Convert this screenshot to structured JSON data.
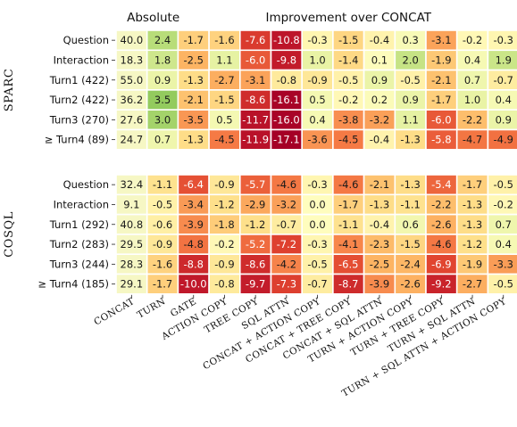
{
  "chart_data": {
    "type": "heatmap",
    "header_absolute": "Absolute",
    "header_improvement": "Improvement over CONCAT",
    "columns": [
      "CONCAT",
      "TURN",
      "GATE",
      "ACTION COPY",
      "TREE COPY",
      "SQL ATTN",
      "CONCAT + ACTION COPY",
      "CONCAT + TREE COPY",
      "CONCAT + SQL ATTN",
      "TURN + ACTION COPY",
      "TURN + TREE COPY",
      "TURN + SQL ATTN",
      "TURN + SQL ATTN + ACTION COPY"
    ],
    "groups": [
      {
        "name": "SPARC",
        "rows": [
          {
            "label": "Question",
            "values": [
              40.0,
              2.4,
              -1.7,
              -1.6,
              -7.6,
              -10.8,
              -0.3,
              -1.5,
              -0.4,
              0.3,
              -3.1,
              -0.2,
              -0.3
            ]
          },
          {
            "label": "Interaction",
            "values": [
              18.3,
              1.8,
              -2.5,
              1.1,
              -6.0,
              -9.8,
              1.0,
              -1.4,
              0.1,
              2.0,
              -1.9,
              0.4,
              1.9
            ]
          },
          {
            "label": "Turn1 (422)",
            "values": [
              55.0,
              0.9,
              -1.3,
              -2.7,
              -3.1,
              -0.8,
              -0.9,
              -0.5,
              0.9,
              -0.5,
              -2.1,
              0.7,
              -0.7
            ]
          },
          {
            "label": "Turn2 (422)",
            "values": [
              36.2,
              3.5,
              -2.1,
              -1.5,
              -8.6,
              -16.1,
              0.5,
              -0.2,
              0.2,
              0.9,
              -1.7,
              1.0,
              0.4
            ]
          },
          {
            "label": "Turn3 (270)",
            "values": [
              27.6,
              3.0,
              -3.5,
              0.5,
              -11.7,
              -16.0,
              0.4,
              -3.8,
              -3.2,
              1.1,
              -6.0,
              -2.2,
              0.9
            ]
          },
          {
            "label": "≥ Turn4 (89)",
            "values": [
              24.7,
              0.7,
              -1.3,
              -4.5,
              -11.9,
              -17.1,
              -3.6,
              -4.5,
              -0.4,
              -1.3,
              -5.8,
              -4.7,
              -4.9
            ]
          }
        ]
      },
      {
        "name": "COSQL",
        "rows": [
          {
            "label": "Question",
            "values": [
              32.4,
              -1.1,
              -6.4,
              -0.9,
              -5.7,
              -4.6,
              -0.3,
              -4.6,
              -2.1,
              -1.3,
              -5.4,
              -1.7,
              -0.5
            ]
          },
          {
            "label": "Interaction",
            "values": [
              9.1,
              -0.5,
              -3.4,
              -1.2,
              -2.9,
              -3.2,
              0.0,
              -1.7,
              -1.3,
              -1.1,
              -2.2,
              -1.3,
              -0.2
            ]
          },
          {
            "label": "Turn1 (292)",
            "values": [
              40.8,
              -0.6,
              -3.9,
              -1.8,
              -1.2,
              -0.7,
              0.0,
              -1.1,
              -0.4,
              0.6,
              -2.6,
              -1.3,
              0.7
            ]
          },
          {
            "label": "Turn2 (283)",
            "values": [
              29.5,
              -0.9,
              -4.8,
              -0.2,
              -5.2,
              -7.2,
              -0.3,
              -4.1,
              -2.3,
              -1.5,
              -4.6,
              -1.2,
              0.4
            ]
          },
          {
            "label": "Turn3 (244)",
            "values": [
              28.3,
              -1.6,
              -8.8,
              -0.9,
              -8.6,
              -4.2,
              -0.5,
              -6.5,
              -2.5,
              -2.4,
              -6.9,
              -1.9,
              -3.3
            ]
          },
          {
            "label": "≥ Turn4 (185)",
            "values": [
              29.1,
              -1.7,
              -10.0,
              -0.8,
              -9.7,
              -7.3,
              -0.7,
              -8.7,
              -3.9,
              -2.6,
              -9.2,
              -2.7,
              -0.5
            ]
          }
        ]
      }
    ],
    "colors": {
      "absolute": "#f6f7c4",
      "strong_negative": "#a50026",
      "negative": "#f46d43",
      "mild_negative": "#fdbe6b",
      "neutral": "#fffdbe",
      "positive": "#a6d96a",
      "grid": "#ffffff"
    }
  }
}
